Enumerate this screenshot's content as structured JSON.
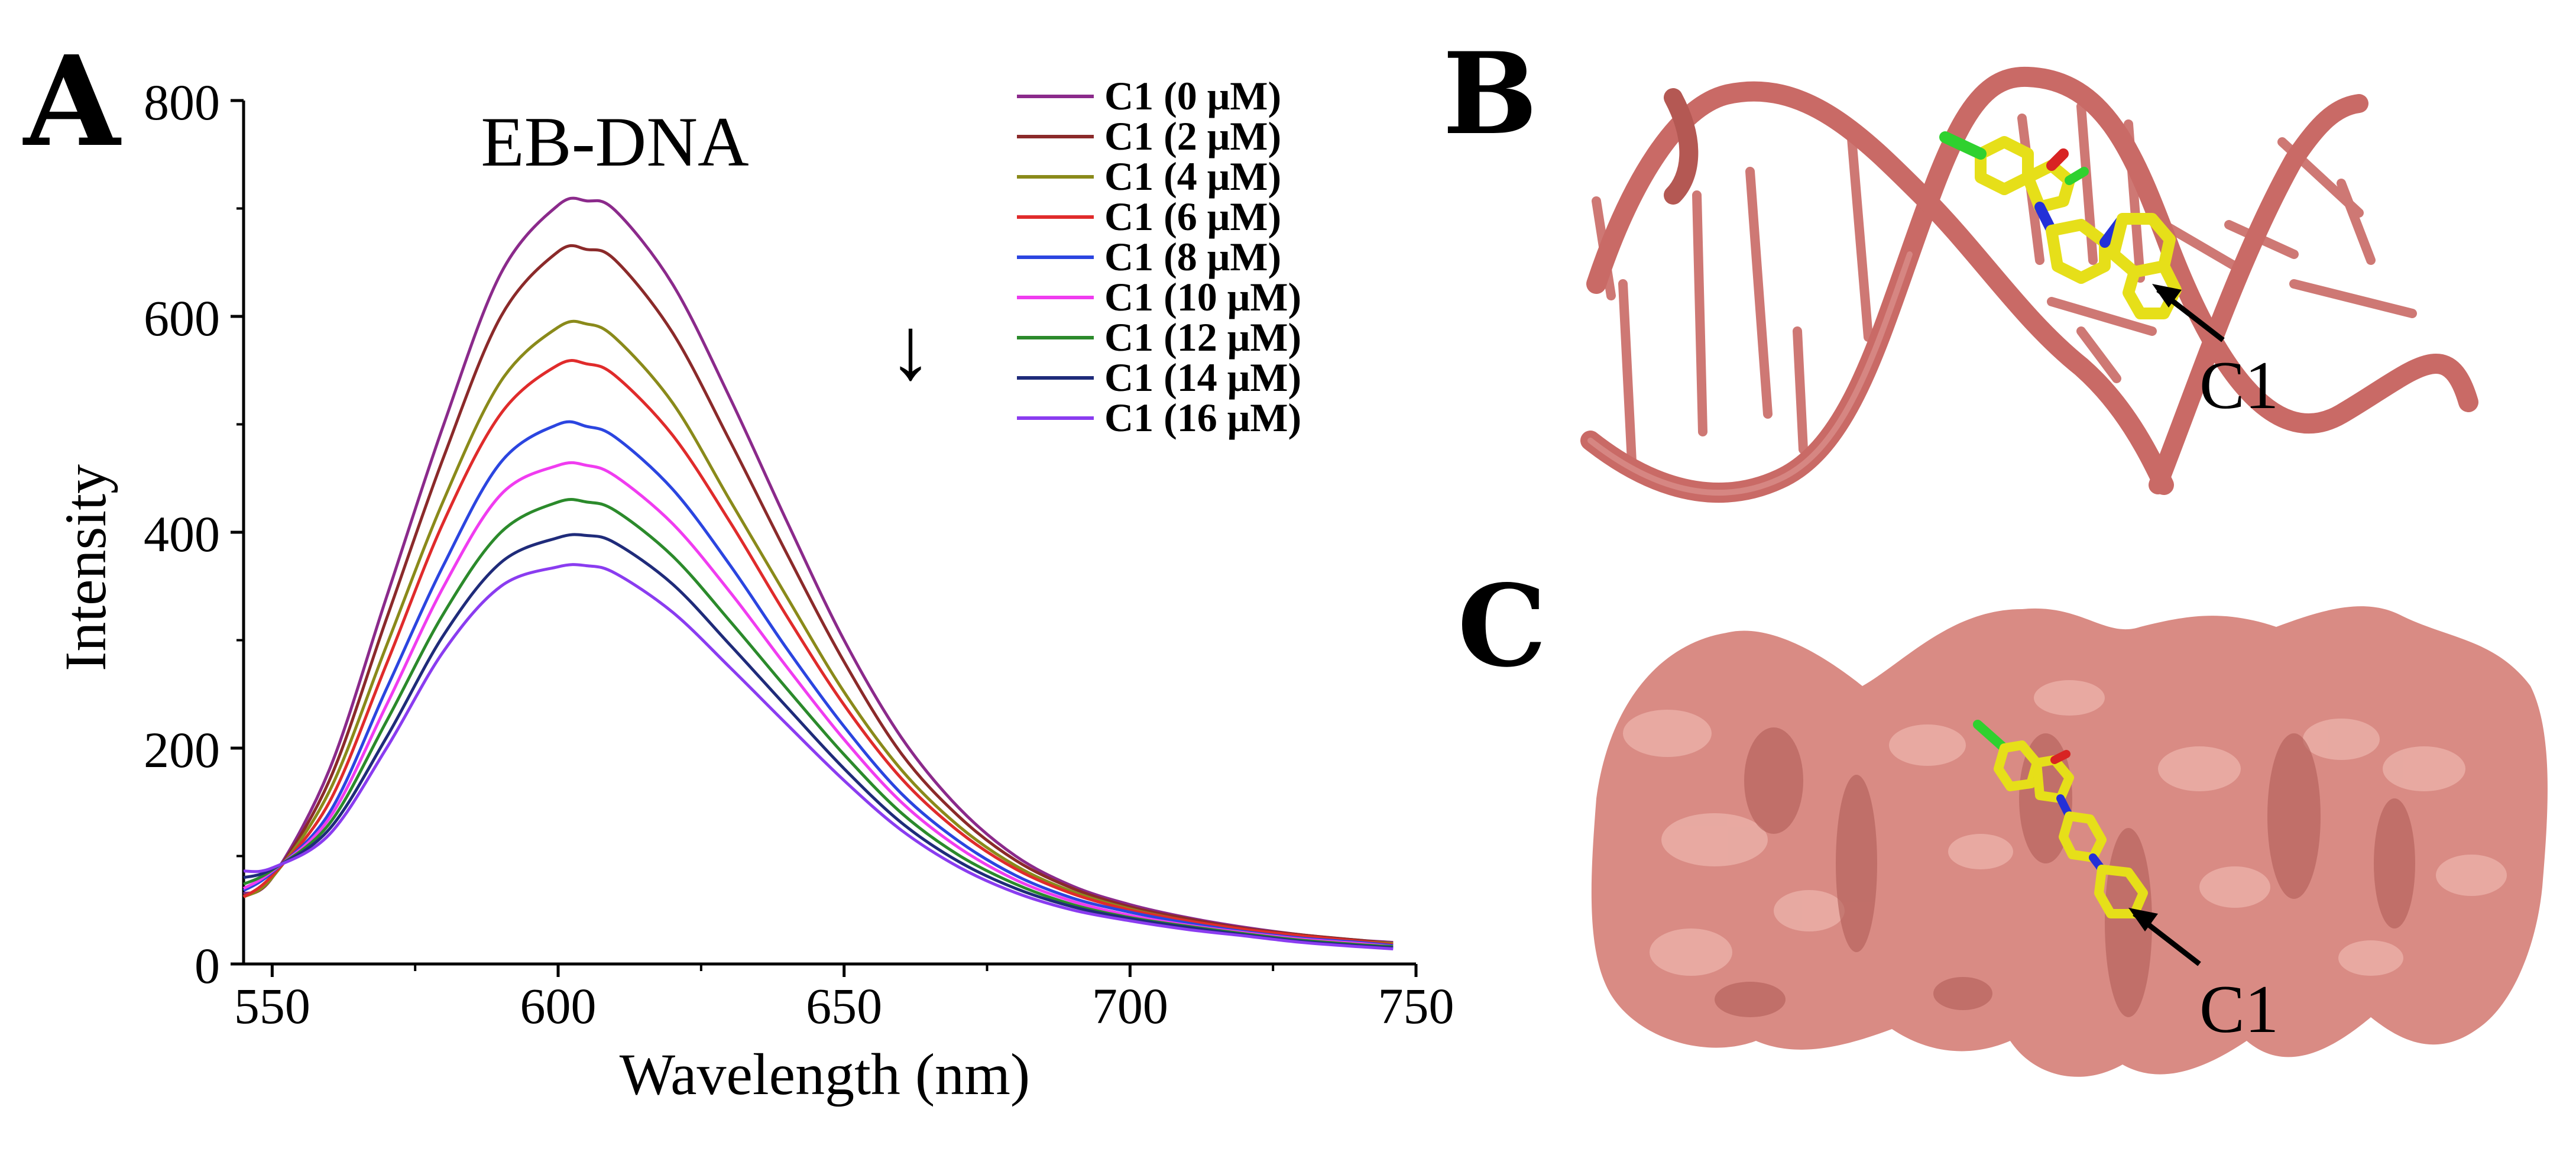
{
  "panels": {
    "a_label": "A",
    "b_label": "B",
    "c_label": "C"
  },
  "ligand_labels": {
    "b": "C1",
    "c": "C1"
  },
  "colors": {
    "dna": "#c96a66",
    "dna_dark": "#a94f4c",
    "surface": "#d98b84",
    "surface_light": "#ecb3ab",
    "surface_dark": "#b4615b",
    "ligand": "#e6df19",
    "ligand_edge": "#a39d05",
    "nitrogen": "#2330d8",
    "oxygen": "#d82323",
    "chlorine": "#2fd12f"
  },
  "chart_data": {
    "type": "line",
    "title": "EB-DNA",
    "xlabel": "Wavelength (nm)",
    "ylabel": "Intensity",
    "xlim": [
      545,
      750
    ],
    "ylim": [
      0,
      800
    ],
    "xticks": [
      550,
      600,
      650,
      700,
      750
    ],
    "yticks": [
      0,
      200,
      400,
      600,
      800
    ],
    "grid": false,
    "legend_position": "top-right",
    "annotation": "↓",
    "x": [
      545,
      550,
      560,
      570,
      580,
      590,
      600,
      605,
      610,
      620,
      630,
      640,
      650,
      660,
      670,
      680,
      690,
      700,
      710,
      720,
      730,
      740,
      746
    ],
    "series": [
      {
        "name": "C1 (0 μM)",
        "color": "#8b2a8b",
        "values": [
          65,
          80,
          180,
          340,
          500,
          640,
          703,
          707,
          698,
          630,
          525,
          410,
          300,
          210,
          145,
          100,
          72,
          55,
          43,
          34,
          27,
          22,
          20
        ]
      },
      {
        "name": "C1 (2 μM)",
        "color": "#8b2a2a",
        "values": [
          63,
          80,
          170,
          320,
          470,
          600,
          660,
          662,
          652,
          585,
          485,
          380,
          280,
          195,
          137,
          96,
          70,
          53,
          42,
          33,
          27,
          22,
          19
        ]
      },
      {
        "name": "C1 (4 μM)",
        "color": "#8a8a1a",
        "values": [
          62,
          80,
          160,
          295,
          430,
          540,
          590,
          593,
          580,
          520,
          430,
          340,
          252,
          180,
          128,
          91,
          67,
          51,
          40,
          32,
          26,
          21,
          19
        ]
      },
      {
        "name": "C1 (6 μM)",
        "color": "#e02b2b",
        "values": [
          62,
          82,
          150,
          278,
          410,
          510,
          555,
          556,
          545,
          490,
          410,
          322,
          240,
          172,
          123,
          88,
          65,
          50,
          40,
          32,
          26,
          21,
          18
        ]
      },
      {
        "name": "C1 (8 μM)",
        "color": "#2b45e0",
        "values": [
          68,
          85,
          140,
          255,
          370,
          465,
          500,
          498,
          488,
          440,
          370,
          292,
          220,
          158,
          114,
          82,
          61,
          48,
          38,
          30,
          24,
          20,
          17
        ]
      },
      {
        "name": "C1 (10 μM)",
        "color": "#f03cf0",
        "values": [
          70,
          86,
          135,
          240,
          350,
          435,
          462,
          462,
          452,
          408,
          345,
          275,
          208,
          150,
          108,
          78,
          58,
          45,
          36,
          29,
          23,
          19,
          16
        ]
      },
      {
        "name": "C1 (12 μM)",
        "color": "#2b8a2b",
        "values": [
          74,
          87,
          130,
          225,
          325,
          400,
          428,
          428,
          420,
          378,
          318,
          255,
          194,
          140,
          101,
          74,
          55,
          43,
          35,
          28,
          22,
          18,
          16
        ]
      },
      {
        "name": "C1 (14 μM)",
        "color": "#1f2b7a",
        "values": [
          80,
          88,
          125,
          210,
          305,
          372,
          395,
          397,
          390,
          352,
          296,
          238,
          181,
          131,
          95,
          70,
          53,
          42,
          34,
          27,
          21,
          17,
          15
        ]
      },
      {
        "name": "C1 (16 μM)",
        "color": "#8a3cf0",
        "values": [
          86,
          89,
          120,
          200,
          290,
          350,
          368,
          369,
          362,
          326,
          275,
          222,
          170,
          124,
          90,
          66,
          50,
          40,
          32,
          26,
          20,
          16,
          14
        ]
      }
    ]
  }
}
